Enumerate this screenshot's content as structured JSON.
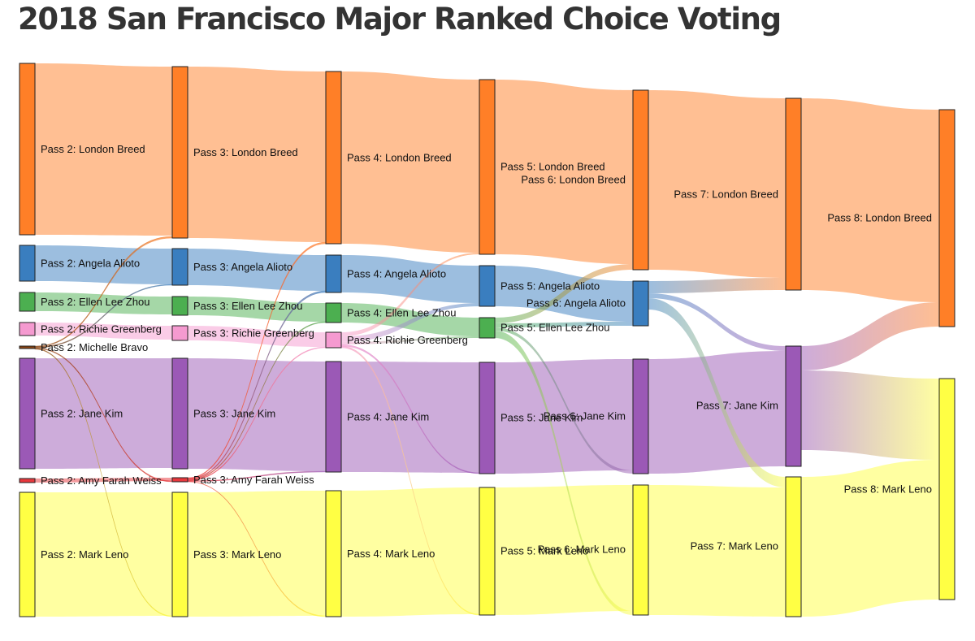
{
  "title": "2018 San Francisco Major Ranked Choice Voting",
  "colors": {
    "London Breed": "#ff7f27",
    "Angela Alioto": "#3a7ebf",
    "Ellen Lee Zhou": "#4caf50",
    "Richie Greenberg": "#f59ad0",
    "Michelle Bravo": "#8b4513",
    "Jane Kim": "#9b59b6",
    "Amy Farah Weiss": "#e8383d",
    "Mark Leno": "#ffff44"
  },
  "nodes": [
    {
      "pass": 2,
      "candidate": "London Breed",
      "label": "Pass 2: London Breed"
    },
    {
      "pass": 2,
      "candidate": "Angela Alioto",
      "label": "Pass 2: Angela Alioto"
    },
    {
      "pass": 2,
      "candidate": "Ellen Lee Zhou",
      "label": "Pass 2: Ellen Lee Zhou"
    },
    {
      "pass": 2,
      "candidate": "Richie Greenberg",
      "label": "Pass 2: Richie Greenberg"
    },
    {
      "pass": 2,
      "candidate": "Michelle Bravo",
      "label": "Pass 2: Michelle Bravo"
    },
    {
      "pass": 2,
      "candidate": "Jane Kim",
      "label": "Pass 2: Jane Kim"
    },
    {
      "pass": 2,
      "candidate": "Amy Farah Weiss",
      "label": "Pass 2: Amy Farah Weiss"
    },
    {
      "pass": 2,
      "candidate": "Mark Leno",
      "label": "Pass 2: Mark Leno"
    },
    {
      "pass": 3,
      "candidate": "London Breed",
      "label": "Pass 3: London Breed"
    },
    {
      "pass": 3,
      "candidate": "Angela Alioto",
      "label": "Pass 3: Angela Alioto"
    },
    {
      "pass": 3,
      "candidate": "Ellen Lee Zhou",
      "label": "Pass 3: Ellen Lee Zhou"
    },
    {
      "pass": 3,
      "candidate": "Richie Greenberg",
      "label": "Pass 3: Richie Greenberg"
    },
    {
      "pass": 3,
      "candidate": "Jane Kim",
      "label": "Pass 3: Jane Kim"
    },
    {
      "pass": 3,
      "candidate": "Amy Farah Weiss",
      "label": "Pass 3: Amy Farah Weiss"
    },
    {
      "pass": 3,
      "candidate": "Mark Leno",
      "label": "Pass 3: Mark Leno"
    },
    {
      "pass": 4,
      "candidate": "London Breed",
      "label": "Pass 4: London Breed"
    },
    {
      "pass": 4,
      "candidate": "Angela Alioto",
      "label": "Pass 4: Angela Alioto"
    },
    {
      "pass": 4,
      "candidate": "Ellen Lee Zhou",
      "label": "Pass 4: Ellen Lee Zhou"
    },
    {
      "pass": 4,
      "candidate": "Richie Greenberg",
      "label": "Pass 4: Richie Greenberg"
    },
    {
      "pass": 4,
      "candidate": "Jane Kim",
      "label": "Pass 4: Jane Kim"
    },
    {
      "pass": 4,
      "candidate": "Mark Leno",
      "label": "Pass 4: Mark Leno"
    },
    {
      "pass": 5,
      "candidate": "London Breed",
      "label": "Pass 5: London Breed"
    },
    {
      "pass": 5,
      "candidate": "Angela Alioto",
      "label": "Pass 5: Angela Alioto"
    },
    {
      "pass": 5,
      "candidate": "Ellen Lee Zhou",
      "label": "Pass 5: Ellen Lee Zhou"
    },
    {
      "pass": 5,
      "candidate": "Jane Kim",
      "label": "Pass 5: Jane Kim"
    },
    {
      "pass": 5,
      "candidate": "Mark Leno",
      "label": "Pass 5: Mark Leno"
    },
    {
      "pass": 6,
      "candidate": "London Breed",
      "label": "Pass 6: London Breed"
    },
    {
      "pass": 6,
      "candidate": "Angela Alioto",
      "label": "Pass 6: Angela Alioto"
    },
    {
      "pass": 6,
      "candidate": "Jane Kim",
      "label": "Pass 6: Jane Kim"
    },
    {
      "pass": 6,
      "candidate": "Mark Leno",
      "label": "Pass 6: Mark Leno"
    },
    {
      "pass": 7,
      "candidate": "London Breed",
      "label": "Pass 7: London Breed"
    },
    {
      "pass": 7,
      "candidate": "Jane Kim",
      "label": "Pass 7: Jane Kim"
    },
    {
      "pass": 7,
      "candidate": "Mark Leno",
      "label": "Pass 7: Mark Leno"
    },
    {
      "pass": 8,
      "candidate": "London Breed",
      "label": "Pass 8: London Breed"
    },
    {
      "pass": 8,
      "candidate": "Mark Leno",
      "label": "Pass 8: Mark Leno"
    }
  ],
  "links": [
    {
      "from": "Pass 2: London Breed",
      "to": "Pass 3: London Breed"
    },
    {
      "from": "Pass 2: Angela Alioto",
      "to": "Pass 3: Angela Alioto"
    },
    {
      "from": "Pass 2: Ellen Lee Zhou",
      "to": "Pass 3: Ellen Lee Zhou"
    },
    {
      "from": "Pass 2: Richie Greenberg",
      "to": "Pass 3: Richie Greenberg"
    },
    {
      "from": "Pass 2: Jane Kim",
      "to": "Pass 3: Jane Kim"
    },
    {
      "from": "Pass 2: Amy Farah Weiss",
      "to": "Pass 3: Amy Farah Weiss"
    },
    {
      "from": "Pass 2: Mark Leno",
      "to": "Pass 3: Mark Leno"
    },
    {
      "from": "Pass 2: Michelle Bravo",
      "to": "Pass 3: London Breed"
    },
    {
      "from": "Pass 2: Michelle Bravo",
      "to": "Pass 3: Angela Alioto"
    },
    {
      "from": "Pass 2: Michelle Bravo",
      "to": "Pass 3: Amy Farah Weiss"
    },
    {
      "from": "Pass 2: Michelle Bravo",
      "to": "Pass 3: Mark Leno"
    },
    {
      "from": "Pass 3: London Breed",
      "to": "Pass 4: London Breed"
    },
    {
      "from": "Pass 3: Angela Alioto",
      "to": "Pass 4: Angela Alioto"
    },
    {
      "from": "Pass 3: Ellen Lee Zhou",
      "to": "Pass 4: Ellen Lee Zhou"
    },
    {
      "from": "Pass 3: Richie Greenberg",
      "to": "Pass 4: Richie Greenberg"
    },
    {
      "from": "Pass 3: Jane Kim",
      "to": "Pass 4: Jane Kim"
    },
    {
      "from": "Pass 3: Mark Leno",
      "to": "Pass 4: Mark Leno"
    },
    {
      "from": "Pass 3: Amy Farah Weiss",
      "to": "Pass 4: London Breed"
    },
    {
      "from": "Pass 3: Amy Farah Weiss",
      "to": "Pass 4: Angela Alioto"
    },
    {
      "from": "Pass 3: Amy Farah Weiss",
      "to": "Pass 4: Ellen Lee Zhou"
    },
    {
      "from": "Pass 3: Amy Farah Weiss",
      "to": "Pass 4: Richie Greenberg"
    },
    {
      "from": "Pass 3: Amy Farah Weiss",
      "to": "Pass 4: Jane Kim"
    },
    {
      "from": "Pass 3: Amy Farah Weiss",
      "to": "Pass 4: Mark Leno"
    },
    {
      "from": "Pass 4: London Breed",
      "to": "Pass 5: London Breed"
    },
    {
      "from": "Pass 4: Angela Alioto",
      "to": "Pass 5: Angela Alioto"
    },
    {
      "from": "Pass 4: Ellen Lee Zhou",
      "to": "Pass 5: Ellen Lee Zhou"
    },
    {
      "from": "Pass 4: Jane Kim",
      "to": "Pass 5: Jane Kim"
    },
    {
      "from": "Pass 4: Mark Leno",
      "to": "Pass 5: Mark Leno"
    },
    {
      "from": "Pass 4: Richie Greenberg",
      "to": "Pass 5: London Breed"
    },
    {
      "from": "Pass 4: Richie Greenberg",
      "to": "Pass 5: Angela Alioto"
    },
    {
      "from": "Pass 4: Richie Greenberg",
      "to": "Pass 5: Ellen Lee Zhou"
    },
    {
      "from": "Pass 4: Richie Greenberg",
      "to": "Pass 5: Jane Kim"
    },
    {
      "from": "Pass 4: Richie Greenberg",
      "to": "Pass 5: Mark Leno"
    },
    {
      "from": "Pass 5: London Breed",
      "to": "Pass 6: London Breed"
    },
    {
      "from": "Pass 5: Angela Alioto",
      "to": "Pass 6: Angela Alioto"
    },
    {
      "from": "Pass 5: Jane Kim",
      "to": "Pass 6: Jane Kim"
    },
    {
      "from": "Pass 5: Mark Leno",
      "to": "Pass 6: Mark Leno"
    },
    {
      "from": "Pass 5: Ellen Lee Zhou",
      "to": "Pass 6: London Breed"
    },
    {
      "from": "Pass 5: Ellen Lee Zhou",
      "to": "Pass 6: Angela Alioto"
    },
    {
      "from": "Pass 5: Ellen Lee Zhou",
      "to": "Pass 6: Jane Kim"
    },
    {
      "from": "Pass 5: Ellen Lee Zhou",
      "to": "Pass 6: Mark Leno"
    },
    {
      "from": "Pass 6: London Breed",
      "to": "Pass 7: London Breed"
    },
    {
      "from": "Pass 6: Jane Kim",
      "to": "Pass 7: Jane Kim"
    },
    {
      "from": "Pass 6: Mark Leno",
      "to": "Pass 7: Mark Leno"
    },
    {
      "from": "Pass 6: Angela Alioto",
      "to": "Pass 7: London Breed"
    },
    {
      "from": "Pass 6: Angela Alioto",
      "to": "Pass 7: Jane Kim"
    },
    {
      "from": "Pass 6: Angela Alioto",
      "to": "Pass 7: Mark Leno"
    },
    {
      "from": "Pass 7: London Breed",
      "to": "Pass 8: London Breed"
    },
    {
      "from": "Pass 7: Mark Leno",
      "to": "Pass 8: Mark Leno"
    },
    {
      "from": "Pass 7: Jane Kim",
      "to": "Pass 8: London Breed"
    },
    {
      "from": "Pass 7: Jane Kim",
      "to": "Pass 8: Mark Leno"
    }
  ]
}
